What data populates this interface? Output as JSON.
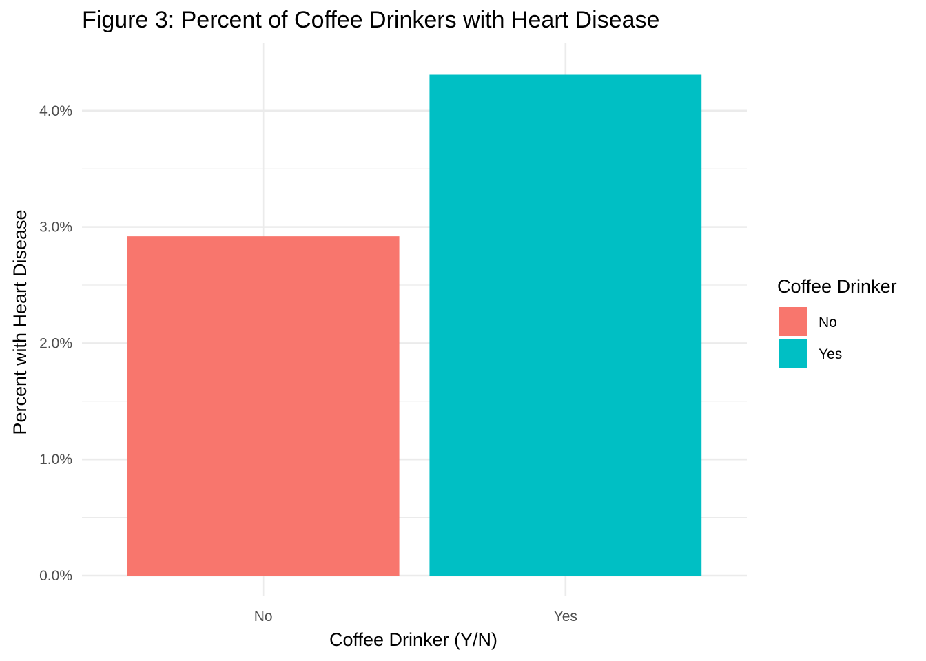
{
  "chart_data": {
    "type": "bar",
    "title": "Figure 3: Percent of Coffee Drinkers with Heart Disease",
    "xlabel": "Coffee Drinker (Y/N)",
    "ylabel": "Percent with Heart Disease",
    "categories": [
      "No",
      "Yes"
    ],
    "values": [
      2.92,
      4.31
    ],
    "colors": [
      "#F8766D",
      "#00BFC4"
    ],
    "ylim": [
      0,
      4.55
    ],
    "yticks": [
      0,
      1,
      2,
      3,
      4
    ],
    "ytick_labels": [
      "0.0%",
      "1.0%",
      "2.0%",
      "3.0%",
      "4.0%"
    ],
    "grid": true,
    "legend": {
      "title": "Coffee Drinker",
      "position": "right",
      "entries": [
        {
          "label": "No",
          "color": "#F8766D"
        },
        {
          "label": "Yes",
          "color": "#00BFC4"
        }
      ]
    }
  }
}
